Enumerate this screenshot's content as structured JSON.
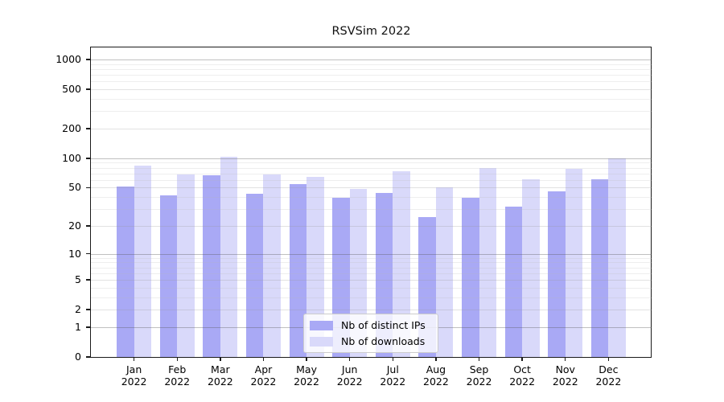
{
  "chart_data": {
    "type": "bar",
    "title": "RSVSim 2022",
    "categories": [
      "Jan 2022",
      "Feb 2022",
      "Mar 2022",
      "Apr 2022",
      "May 2022",
      "Jun 2022",
      "Jul 2022",
      "Aug 2022",
      "Sep 2022",
      "Oct 2022",
      "Nov 2022",
      "Dec 2022"
    ],
    "series": [
      {
        "name": "Nb of distinct IPs",
        "color": "#a9a9f5",
        "values": [
          51,
          42,
          67,
          43,
          54,
          39,
          44,
          25,
          39,
          32,
          46,
          61
        ]
      },
      {
        "name": "Nb of downloads",
        "color": "#d9d9fa",
        "values": [
          84,
          68,
          104,
          68,
          65,
          49,
          74,
          50,
          79,
          61,
          78,
          100
        ]
      }
    ],
    "xlabel": "",
    "ylabel": "",
    "yscale": "log1p",
    "ylim": [
      0,
      1325
    ],
    "y_ticks": [
      0,
      1,
      2,
      5,
      10,
      20,
      50,
      100,
      200,
      500,
      1000
    ],
    "y_major_gridlines": [
      1,
      10,
      100,
      1000
    ],
    "y_minor_gridlines": [
      3,
      4,
      6,
      7,
      8,
      9,
      30,
      40,
      60,
      70,
      80,
      90,
      300,
      400,
      600,
      700,
      800,
      900
    ],
    "grid": true,
    "legend_position": "lower center"
  },
  "colors": {
    "frame": "#1a1a1a",
    "background": "#ffffff",
    "legend_border": "#cccccc"
  }
}
